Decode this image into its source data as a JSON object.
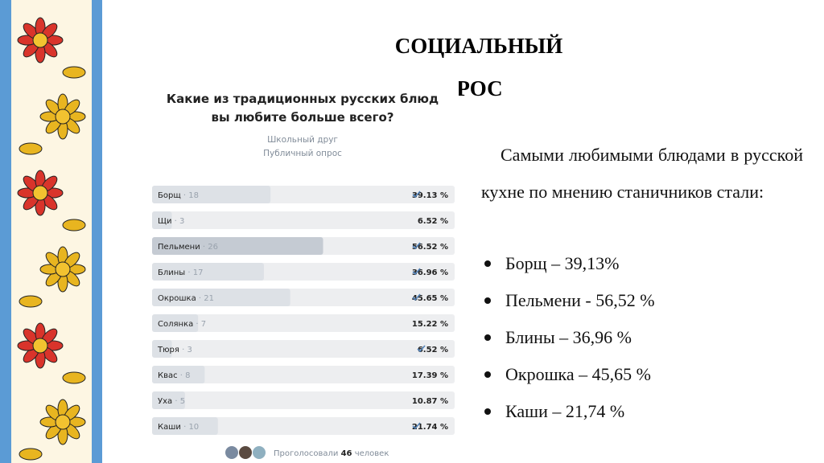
{
  "slide": {
    "title_line1": "СОЦИАЛЬНЫЙ",
    "title_line2": "ОПРОС",
    "paragraph": "Самыми любимыми блюдами в русской кухне по мнению станичников стали:",
    "bullets": [
      "Борщ – 39,13%",
      "Пельмени - 56,52 %",
      "Блины – 36,96 %",
      "Окрошка – 45,65 %",
      "Каши – 21,74 %"
    ]
  },
  "poll": {
    "question_line1": "Какие из традиционных русских блюд",
    "question_line2": "вы любите больше всего?",
    "author": "Школьный друг",
    "kind": "Публичный опрос",
    "options": [
      {
        "name": "Борщ",
        "votes": 18,
        "percent": 39.13,
        "percent_label": "39.13 %",
        "checked": true
      },
      {
        "name": "Щи",
        "votes": 3,
        "percent": 6.52,
        "percent_label": "6.52 %",
        "checked": false
      },
      {
        "name": "Пельмени",
        "votes": 26,
        "percent": 56.52,
        "percent_label": "56.52 %",
        "checked": true
      },
      {
        "name": "Блины",
        "votes": 17,
        "percent": 36.96,
        "percent_label": "36.96 %",
        "checked": true
      },
      {
        "name": "Окрошка",
        "votes": 21,
        "percent": 45.65,
        "percent_label": "45.65 %",
        "checked": true
      },
      {
        "name": "Солянка",
        "votes": 7,
        "percent": 15.22,
        "percent_label": "15.22 %",
        "checked": false
      },
      {
        "name": "Тюря",
        "votes": 3,
        "percent": 6.52,
        "percent_label": "6.52 %",
        "checked": true
      },
      {
        "name": "Квас",
        "votes": 8,
        "percent": 17.39,
        "percent_label": "17.39 %",
        "checked": false
      },
      {
        "name": "Уха",
        "votes": 5,
        "percent": 10.87,
        "percent_label": "10.87 %",
        "checked": false
      },
      {
        "name": "Каши",
        "votes": 10,
        "percent": 21.74,
        "percent_label": "21.74 %",
        "checked": true
      }
    ],
    "voted_prefix": "Проголосовали",
    "voted_count": 46,
    "voted_suffix": "человек"
  }
}
